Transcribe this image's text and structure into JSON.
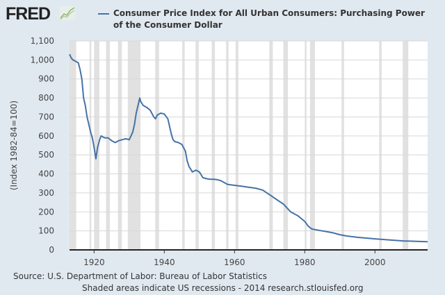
{
  "header": {
    "logo": "FRED",
    "logo_icon": "chart-line-icon"
  },
  "chart_data": {
    "type": "line",
    "title": "Consumer Price Index for All Urban Consumers: Purchasing Power of the Consumer Dollar",
    "ylabel": "(Index 1982-84=100)",
    "xlabel": "",
    "ylim": [
      0,
      1100
    ],
    "xlim": [
      1913,
      2015
    ],
    "yticks": [
      0,
      100,
      200,
      300,
      400,
      500,
      600,
      700,
      800,
      900,
      1000,
      1100
    ],
    "ytick_labels": [
      "0",
      "100",
      "200",
      "300",
      "400",
      "500",
      "600",
      "700",
      "800",
      "900",
      "1,000",
      "1,100"
    ],
    "xticks": [
      1920,
      1940,
      1960,
      1980,
      2000
    ],
    "xtick_labels": [
      "1920",
      "1940",
      "1960",
      "1980",
      "2000"
    ],
    "grid": true,
    "legend_placement": "top",
    "series": [
      {
        "name": "Consumer Price Index for All Urban Consumers: Purchasing Power of the Consumer Dollar",
        "color": "#4572a7",
        "x": [
          1913,
          1913.5,
          1914,
          1914.5,
          1915,
          1915.5,
          1916,
          1916.5,
          1917,
          1917.5,
          1918,
          1918.5,
          1919,
          1919.5,
          1920,
          1920.5,
          1921,
          1921.5,
          1922,
          1922.5,
          1923,
          1924,
          1925,
          1926,
          1927,
          1928,
          1929,
          1930,
          1930.5,
          1931,
          1931.5,
          1932,
          1932.5,
          1933,
          1933.3,
          1934,
          1935,
          1936,
          1937,
          1937.5,
          1938,
          1939,
          1940,
          1941,
          1941.5,
          1942,
          1942.5,
          1943,
          1944,
          1945,
          1946,
          1946.5,
          1947,
          1947.5,
          1948,
          1948.5,
          1949,
          1950,
          1950.5,
          1951,
          1952,
          1953,
          1954,
          1955,
          1956,
          1957,
          1958,
          1960,
          1962,
          1964,
          1966,
          1968,
          1970,
          1972,
          1974,
          1975,
          1976,
          1978,
          1980,
          1981,
          1982,
          1984,
          1986,
          1988,
          1990,
          1992,
          1995,
          2000,
          2005,
          2008,
          2010,
          2015
        ],
        "values": [
          1030,
          1010,
          1000,
          995,
          990,
          985,
          950,
          900,
          800,
          760,
          700,
          660,
          620,
          590,
          540,
          480,
          540,
          575,
          600,
          595,
          590,
          590,
          575,
          565,
          575,
          580,
          585,
          580,
          600,
          620,
          660,
          720,
          760,
          800,
          780,
          760,
          750,
          735,
          700,
          690,
          710,
          720,
          715,
          690,
          650,
          610,
          580,
          570,
          565,
          555,
          520,
          470,
          440,
          425,
          410,
          415,
          420,
          410,
          395,
          380,
          375,
          372,
          372,
          370,
          365,
          355,
          345,
          340,
          335,
          330,
          325,
          315,
          290,
          265,
          240,
          220,
          200,
          180,
          150,
          125,
          110,
          103,
          97,
          90,
          80,
          73,
          66,
          58,
          51,
          47,
          46,
          43
        ]
      }
    ]
  },
  "recessions": [
    [
      1913,
      1914.9
    ],
    [
      1918.7,
      1919.2
    ],
    [
      1920,
      1921.5
    ],
    [
      1923.4,
      1924.5
    ],
    [
      1926.8,
      1927.9
    ],
    [
      1929.6,
      1933.2
    ],
    [
      1937.4,
      1938.5
    ],
    [
      1945.1,
      1945.8
    ],
    [
      1948.9,
      1949.8
    ],
    [
      1953.5,
      1954.4
    ],
    [
      1957.6,
      1958.3
    ],
    [
      1960.3,
      1961.1
    ],
    [
      1969.9,
      1970.9
    ],
    [
      1973.9,
      1975.2
    ],
    [
      1980,
      1980.5
    ],
    [
      1981.5,
      1982.9
    ],
    [
      1990.5,
      1991.2
    ],
    [
      2001.2,
      2001.9
    ],
    [
      2007.9,
      2009.5
    ]
  ],
  "footer": {
    "source": "Source: U.S. Department of Labor: Bureau of Labor Statistics",
    "note": "Shaded areas indicate US recessions - 2014 research.stlouisfed.org"
  }
}
